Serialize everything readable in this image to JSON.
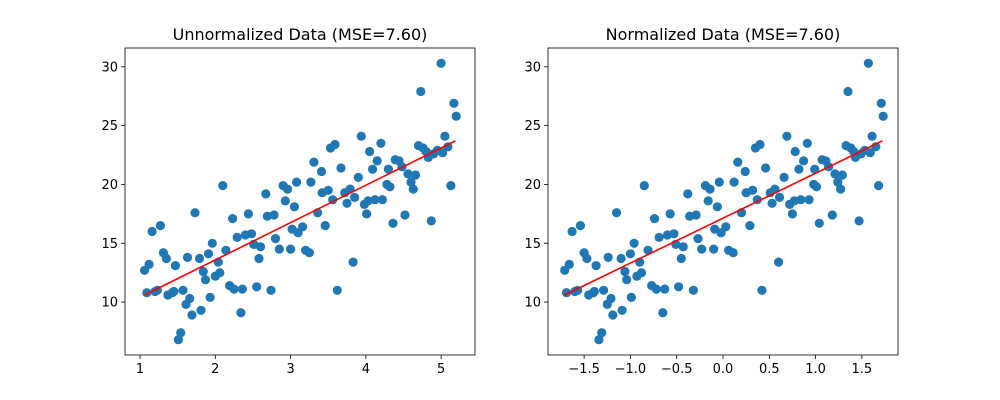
{
  "colors": {
    "points": "#1f77b4",
    "fit_line": "#ff0000",
    "axes": "#000000",
    "background": "#ffffff"
  },
  "chart_data": [
    {
      "type": "scatter",
      "title": "Unnormalized Data (MSE=7.60)",
      "xlabel": "",
      "ylabel": "",
      "xlim": [
        0.8,
        5.45
      ],
      "ylim": [
        5.5,
        31.6
      ],
      "xticks": [
        1,
        2,
        3,
        4,
        5
      ],
      "xtick_labels": [
        "1",
        "2",
        "3",
        "4",
        "5"
      ],
      "yticks": [
        10,
        15,
        20,
        25,
        30
      ],
      "ytick_labels": [
        "10",
        "15",
        "20",
        "25",
        "30"
      ],
      "grid": false,
      "fit_line": {
        "x": [
          1.06,
          5.19
        ],
        "y": [
          10.6,
          23.7
        ]
      },
      "points": [
        [
          1.06,
          12.7
        ],
        [
          1.09,
          10.8
        ],
        [
          1.12,
          13.2
        ],
        [
          1.16,
          16.0
        ],
        [
          1.2,
          10.9
        ],
        [
          1.23,
          11.0
        ],
        [
          1.27,
          16.5
        ],
        [
          1.31,
          14.2
        ],
        [
          1.35,
          13.7
        ],
        [
          1.37,
          10.6
        ],
        [
          1.43,
          10.8
        ],
        [
          1.45,
          10.9
        ],
        [
          1.47,
          13.1
        ],
        [
          1.51,
          6.8
        ],
        [
          1.54,
          7.4
        ],
        [
          1.57,
          11.0
        ],
        [
          1.61,
          9.8
        ],
        [
          1.63,
          13.8
        ],
        [
          1.66,
          10.3
        ],
        [
          1.69,
          8.9
        ],
        [
          1.73,
          17.6
        ],
        [
          1.79,
          13.7
        ],
        [
          1.81,
          9.3
        ],
        [
          1.84,
          12.6
        ],
        [
          1.87,
          11.9
        ],
        [
          1.91,
          14.1
        ],
        [
          1.93,
          10.4
        ],
        [
          1.96,
          15.0
        ],
        [
          2.0,
          12.2
        ],
        [
          2.04,
          13.4
        ],
        [
          2.06,
          12.5
        ],
        [
          2.1,
          19.9
        ],
        [
          2.14,
          14.4
        ],
        [
          2.19,
          11.4
        ],
        [
          2.23,
          17.1
        ],
        [
          2.25,
          11.1
        ],
        [
          2.29,
          15.5
        ],
        [
          2.34,
          9.1
        ],
        [
          2.36,
          11.1
        ],
        [
          2.4,
          15.7
        ],
        [
          2.44,
          17.5
        ],
        [
          2.48,
          15.8
        ],
        [
          2.51,
          14.9
        ],
        [
          2.55,
          11.3
        ],
        [
          2.58,
          13.7
        ],
        [
          2.6,
          14.7
        ],
        [
          2.67,
          19.2
        ],
        [
          2.69,
          17.3
        ],
        [
          2.74,
          11.0
        ],
        [
          2.78,
          17.4
        ],
        [
          2.8,
          15.4
        ],
        [
          2.85,
          14.5
        ],
        [
          2.9,
          19.9
        ],
        [
          2.93,
          18.6
        ],
        [
          2.96,
          19.6
        ],
        [
          3.0,
          14.5
        ],
        [
          3.02,
          16.2
        ],
        [
          3.05,
          18.1
        ],
        [
          3.08,
          20.2
        ],
        [
          3.1,
          15.9
        ],
        [
          3.16,
          16.4
        ],
        [
          3.2,
          14.4
        ],
        [
          3.25,
          14.2
        ],
        [
          3.27,
          20.2
        ],
        [
          3.31,
          21.9
        ],
        [
          3.36,
          17.6
        ],
        [
          3.41,
          21.1
        ],
        [
          3.42,
          19.3
        ],
        [
          3.46,
          16.5
        ],
        [
          3.5,
          19.5
        ],
        [
          3.53,
          23.1
        ],
        [
          3.56,
          18.7
        ],
        [
          3.59,
          23.4
        ],
        [
          3.62,
          11.0
        ],
        [
          3.67,
          21.4
        ],
        [
          3.72,
          19.3
        ],
        [
          3.75,
          18.4
        ],
        [
          3.79,
          19.6
        ],
        [
          3.83,
          13.4
        ],
        [
          3.85,
          18.9
        ],
        [
          3.9,
          20.6
        ],
        [
          3.94,
          24.1
        ],
        [
          3.98,
          18.3
        ],
        [
          4.01,
          17.5
        ],
        [
          4.03,
          18.6
        ],
        [
          4.05,
          22.8
        ],
        [
          4.09,
          21.3
        ],
        [
          4.12,
          18.7
        ],
        [
          4.15,
          22.0
        ],
        [
          4.2,
          23.5
        ],
        [
          4.22,
          18.7
        ],
        [
          4.28,
          20.0
        ],
        [
          4.3,
          21.3
        ],
        [
          4.32,
          19.8
        ],
        [
          4.36,
          16.7
        ],
        [
          4.39,
          22.1
        ],
        [
          4.44,
          22.0
        ],
        [
          4.48,
          21.5
        ],
        [
          4.52,
          17.4
        ],
        [
          4.56,
          20.9
        ],
        [
          4.6,
          20.2
        ],
        [
          4.63,
          19.6
        ],
        [
          4.66,
          20.8
        ],
        [
          4.7,
          23.3
        ],
        [
          4.73,
          27.9
        ],
        [
          4.76,
          23.1
        ],
        [
          4.8,
          22.8
        ],
        [
          4.83,
          22.3
        ],
        [
          4.87,
          16.9
        ],
        [
          4.9,
          22.6
        ],
        [
          4.95,
          22.9
        ],
        [
          5.0,
          30.3
        ],
        [
          5.02,
          22.7
        ],
        [
          5.05,
          24.1
        ],
        [
          5.09,
          23.2
        ],
        [
          5.13,
          19.9
        ],
        [
          5.17,
          26.9
        ],
        [
          5.2,
          25.8
        ]
      ]
    },
    {
      "type": "scatter",
      "title": "Normalized Data (MSE=7.60)",
      "xlabel": "",
      "ylabel": "",
      "xlim": [
        -1.89,
        1.89
      ],
      "ylim": [
        5.5,
        31.6
      ],
      "xticks": [
        -1.5,
        -1.0,
        -0.5,
        0.0,
        0.5,
        1.0,
        1.5
      ],
      "xtick_labels": [
        "−1.5",
        "−1.0",
        "−0.5",
        "0.0",
        "0.5",
        "1.0",
        "1.5"
      ],
      "yticks": [
        10,
        15,
        20,
        25,
        30
      ],
      "ytick_labels": [
        "10",
        "15",
        "20",
        "25",
        "30"
      ],
      "grid": false,
      "fit_line": {
        "x": [
          -1.71,
          1.72
        ],
        "y": [
          10.6,
          23.7
        ]
      },
      "points": [
        [
          -1.71,
          12.7
        ],
        [
          -1.69,
          10.8
        ],
        [
          -1.66,
          13.2
        ],
        [
          -1.63,
          16.0
        ],
        [
          -1.6,
          10.9
        ],
        [
          -1.57,
          11.0
        ],
        [
          -1.54,
          16.5
        ],
        [
          -1.5,
          14.2
        ],
        [
          -1.47,
          13.7
        ],
        [
          -1.45,
          10.6
        ],
        [
          -1.4,
          10.8
        ],
        [
          -1.39,
          10.9
        ],
        [
          -1.37,
          13.1
        ],
        [
          -1.34,
          6.8
        ],
        [
          -1.31,
          7.4
        ],
        [
          -1.29,
          11.0
        ],
        [
          -1.25,
          9.8
        ],
        [
          -1.24,
          13.8
        ],
        [
          -1.21,
          10.3
        ],
        [
          -1.19,
          8.9
        ],
        [
          -1.15,
          17.6
        ],
        [
          -1.1,
          13.7
        ],
        [
          -1.09,
          9.3
        ],
        [
          -1.06,
          12.6
        ],
        [
          -1.04,
          11.9
        ],
        [
          -1.0,
          14.1
        ],
        [
          -0.99,
          10.4
        ],
        [
          -0.96,
          15.0
        ],
        [
          -0.93,
          12.2
        ],
        [
          -0.9,
          13.4
        ],
        [
          -0.88,
          12.5
        ],
        [
          -0.85,
          19.9
        ],
        [
          -0.81,
          14.4
        ],
        [
          -0.77,
          11.4
        ],
        [
          -0.74,
          17.1
        ],
        [
          -0.72,
          11.1
        ],
        [
          -0.69,
          15.5
        ],
        [
          -0.65,
          9.1
        ],
        [
          -0.63,
          11.1
        ],
        [
          -0.6,
          15.7
        ],
        [
          -0.57,
          17.5
        ],
        [
          -0.53,
          15.8
        ],
        [
          -0.51,
          14.9
        ],
        [
          -0.48,
          11.3
        ],
        [
          -0.45,
          13.7
        ],
        [
          -0.43,
          14.7
        ],
        [
          -0.38,
          19.2
        ],
        [
          -0.36,
          17.3
        ],
        [
          -0.32,
          11.0
        ],
        [
          -0.29,
          17.4
        ],
        [
          -0.27,
          15.4
        ],
        [
          -0.23,
          14.5
        ],
        [
          -0.19,
          19.9
        ],
        [
          -0.16,
          18.6
        ],
        [
          -0.14,
          19.6
        ],
        [
          -0.1,
          14.5
        ],
        [
          -0.09,
          16.2
        ],
        [
          -0.06,
          18.1
        ],
        [
          -0.04,
          20.2
        ],
        [
          -0.02,
          15.9
        ],
        [
          0.03,
          16.4
        ],
        [
          0.06,
          14.4
        ],
        [
          0.11,
          14.2
        ],
        [
          0.12,
          20.2
        ],
        [
          0.16,
          21.9
        ],
        [
          0.2,
          17.6
        ],
        [
          0.24,
          21.1
        ],
        [
          0.25,
          19.3
        ],
        [
          0.29,
          16.5
        ],
        [
          0.32,
          19.5
        ],
        [
          0.35,
          23.1
        ],
        [
          0.37,
          18.7
        ],
        [
          0.4,
          23.4
        ],
        [
          0.42,
          11.0
        ],
        [
          0.46,
          21.4
        ],
        [
          0.51,
          19.3
        ],
        [
          0.53,
          18.4
        ],
        [
          0.56,
          19.6
        ],
        [
          0.6,
          13.4
        ],
        [
          0.61,
          18.9
        ],
        [
          0.66,
          20.6
        ],
        [
          0.69,
          24.1
        ],
        [
          0.72,
          18.3
        ],
        [
          0.75,
          17.5
        ],
        [
          0.77,
          18.6
        ],
        [
          0.78,
          22.8
        ],
        [
          0.82,
          21.3
        ],
        [
          0.84,
          18.7
        ],
        [
          0.87,
          22.0
        ],
        [
          0.91,
          23.5
        ],
        [
          0.93,
          18.7
        ],
        [
          0.98,
          20.0
        ],
        [
          0.99,
          21.3
        ],
        [
          1.01,
          19.8
        ],
        [
          1.04,
          16.7
        ],
        [
          1.07,
          22.1
        ],
        [
          1.11,
          22.0
        ],
        [
          1.14,
          21.5
        ],
        [
          1.18,
          17.4
        ],
        [
          1.21,
          20.9
        ],
        [
          1.24,
          20.2
        ],
        [
          1.27,
          19.6
        ],
        [
          1.29,
          20.8
        ],
        [
          1.33,
          23.3
        ],
        [
          1.35,
          27.9
        ],
        [
          1.38,
          23.1
        ],
        [
          1.41,
          22.8
        ],
        [
          1.43,
          22.3
        ],
        [
          1.47,
          16.9
        ],
        [
          1.49,
          22.6
        ],
        [
          1.53,
          22.9
        ],
        [
          1.57,
          30.3
        ],
        [
          1.59,
          22.7
        ],
        [
          1.61,
          24.1
        ],
        [
          1.65,
          23.2
        ],
        [
          1.68,
          19.9
        ],
        [
          1.71,
          26.9
        ],
        [
          1.73,
          25.8
        ]
      ]
    }
  ]
}
